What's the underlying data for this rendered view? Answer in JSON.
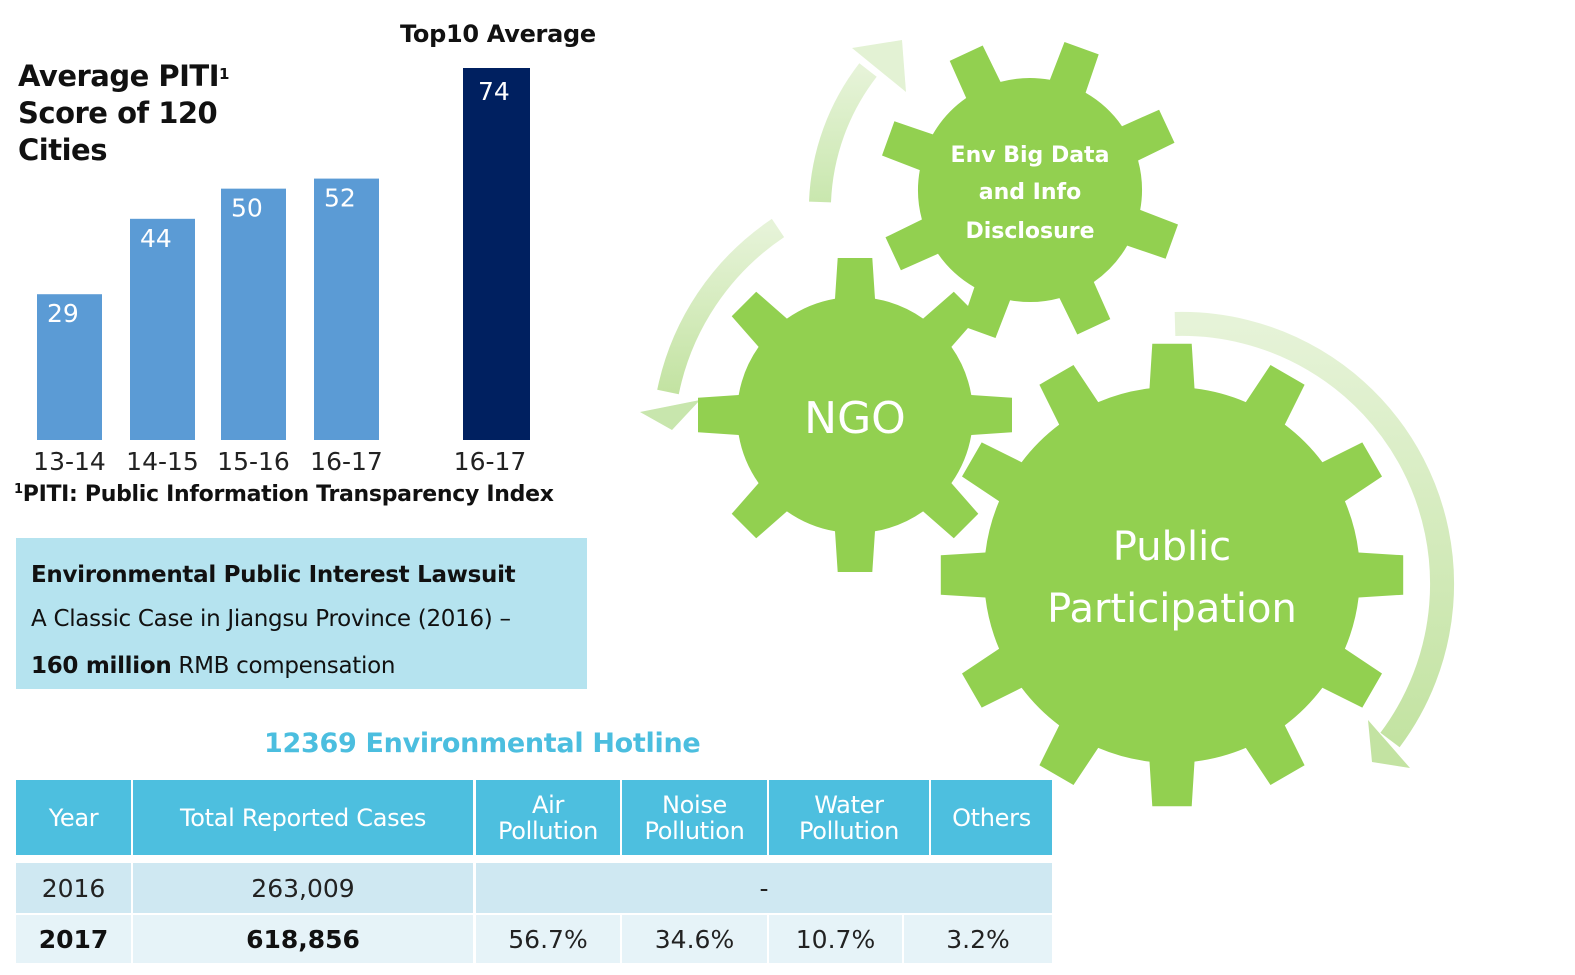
{
  "chart_data": {
    "type": "bar",
    "title": "Average PITI1 Score of 120 Cities",
    "title_main": "Average PITI",
    "title_sup": "1",
    "title_line2": "Score of 120",
    "title_line3": "Cities",
    "categories": [
      "13-14",
      "14-15",
      "15-16",
      "16-17"
    ],
    "values": [
      29,
      44,
      50,
      52
    ],
    "comparison": {
      "label": "Top10 Average",
      "category": "16-17",
      "value": 74
    },
    "series_colors": {
      "average": "#5b9bd5",
      "top10": "#002060"
    },
    "xlabel": "",
    "ylabel": "",
    "ylim": [
      0,
      80
    ],
    "grid": false,
    "data_labels": "inside-top"
  },
  "footnote": {
    "sup": "1",
    "text": "PITI: Public Information Transparency Index"
  },
  "lawsuit": {
    "heading": "Environmental Public Interest Lawsuit",
    "line2": "A Classic Case in Jiangsu Province (2016) –",
    "amount_bold": "160 million",
    "amount_rest": " RMB compensation",
    "bg_color": "#b5e3ef"
  },
  "hotline": {
    "title": "12369 Environmental Hotline",
    "headers": [
      "Year",
      "Total Reported Cases",
      "Air\nPollution",
      "Noise\nPollution",
      "Water\nPollution",
      "Others"
    ],
    "header_lines": [
      [
        "Year"
      ],
      [
        "Total Reported Cases"
      ],
      [
        "Air",
        "Pollution"
      ],
      [
        "Noise",
        "Pollution"
      ],
      [
        "Water",
        "Pollution"
      ],
      [
        "Others"
      ]
    ],
    "rows": [
      {
        "year": "2016",
        "total": "263,009",
        "merged": "-"
      },
      {
        "year": "2017",
        "total": "618,856",
        "air": "56.7%",
        "noise": "34.6%",
        "water": "10.7%",
        "others": "3.2%"
      }
    ],
    "header_color": "#4dbfdf"
  },
  "gears": {
    "top": {
      "lines": [
        "Env Big Data",
        "and Info",
        "Disclosure"
      ]
    },
    "left": {
      "label": "NGO"
    },
    "right": {
      "lines": [
        "Public",
        "Participation"
      ]
    },
    "color": "#92d050",
    "arrow_color": "#c5e5a5"
  }
}
